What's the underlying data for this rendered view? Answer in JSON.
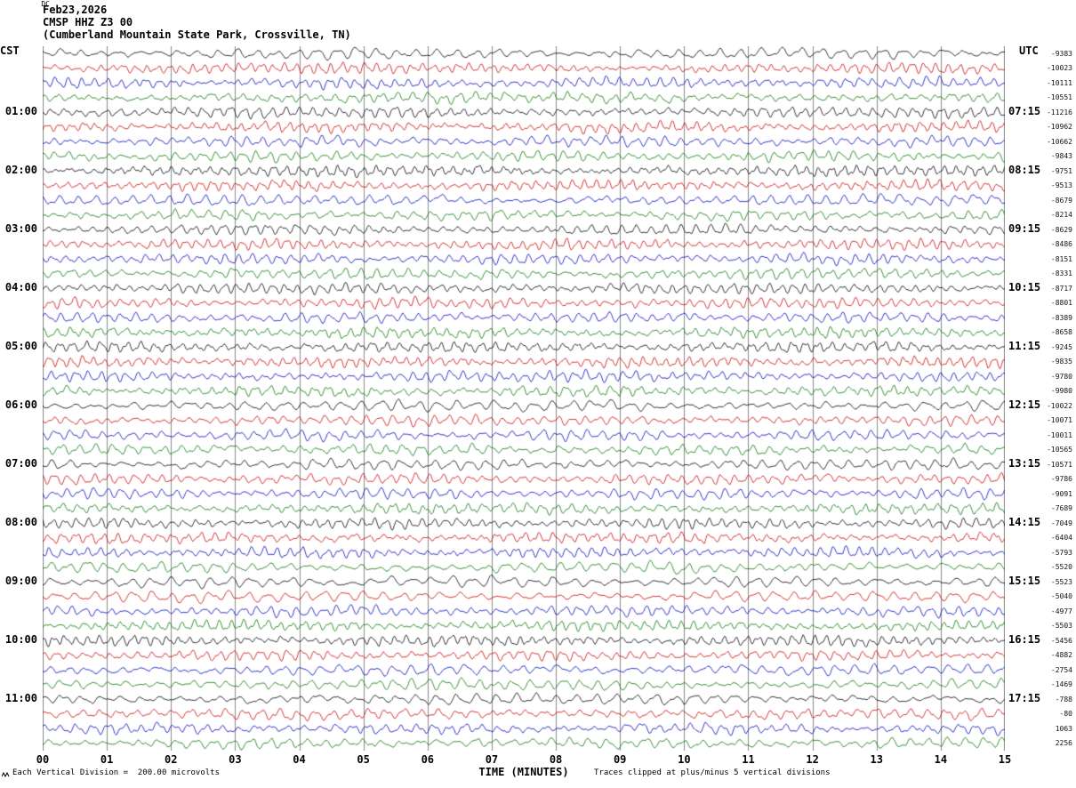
{
  "header": {
    "date": "Feb23,2026",
    "station": "CMSP HHZ Z3 00",
    "location": "(Cumberland Mountain State Park, Crossville, TN)"
  },
  "axes": {
    "left_title": "CST",
    "right_title": "UTC",
    "dc_label": "DC",
    "x_label": "TIME (MINUTES)",
    "x_ticks": [
      "00",
      "01",
      "02",
      "03",
      "04",
      "05",
      "06",
      "07",
      "08",
      "09",
      "10",
      "11",
      "12",
      "13",
      "14",
      "15"
    ]
  },
  "footer": {
    "scale_note": "Each Vertical Division =  200.00 microvolts",
    "clip_note": "Traces clipped at plus/minus 5 vertical divisions"
  },
  "chart_data": {
    "type": "line",
    "title": "CMSP HHZ Z3 00 helicorder, Feb23,2026 (Cumberland Mountain State Park, Crossville, TN)",
    "xlabel": "TIME (MINUTES)",
    "x_range": [
      0,
      15
    ],
    "minutes_per_row": 15,
    "rows_count": 48,
    "vertical_division_microvolts": 200.0,
    "clip_divisions": 5,
    "trace_colors": [
      "#000000",
      "#cc0000",
      "#0000bb",
      "#007700"
    ],
    "grid": "vertical lines at each minute",
    "rows": [
      {
        "cst": "",
        "utc": "",
        "dc": -9383
      },
      {
        "cst": "",
        "utc": "",
        "dc": -10023
      },
      {
        "cst": "",
        "utc": "",
        "dc": -10111
      },
      {
        "cst": "",
        "utc": "",
        "dc": -10551
      },
      {
        "cst": "01:00",
        "utc": "07:15",
        "dc": -11216
      },
      {
        "cst": "",
        "utc": "",
        "dc": -10962
      },
      {
        "cst": "",
        "utc": "",
        "dc": -10662
      },
      {
        "cst": "",
        "utc": "",
        "dc": -9843
      },
      {
        "cst": "02:00",
        "utc": "08:15",
        "dc": -9751
      },
      {
        "cst": "",
        "utc": "",
        "dc": -9513
      },
      {
        "cst": "",
        "utc": "",
        "dc": -8679
      },
      {
        "cst": "",
        "utc": "",
        "dc": -8214
      },
      {
        "cst": "03:00",
        "utc": "09:15",
        "dc": -8629
      },
      {
        "cst": "",
        "utc": "",
        "dc": -8486
      },
      {
        "cst": "",
        "utc": "",
        "dc": -8151
      },
      {
        "cst": "",
        "utc": "",
        "dc": -8331
      },
      {
        "cst": "04:00",
        "utc": "10:15",
        "dc": -8717
      },
      {
        "cst": "",
        "utc": "",
        "dc": -8801
      },
      {
        "cst": "",
        "utc": "",
        "dc": -8389
      },
      {
        "cst": "",
        "utc": "",
        "dc": -8658
      },
      {
        "cst": "05:00",
        "utc": "11:15",
        "dc": -9245
      },
      {
        "cst": "",
        "utc": "",
        "dc": -9835
      },
      {
        "cst": "",
        "utc": "",
        "dc": -9780
      },
      {
        "cst": "",
        "utc": "",
        "dc": -9980
      },
      {
        "cst": "06:00",
        "utc": "12:15",
        "dc": -10022
      },
      {
        "cst": "",
        "utc": "",
        "dc": -10071
      },
      {
        "cst": "",
        "utc": "",
        "dc": -10011
      },
      {
        "cst": "",
        "utc": "",
        "dc": -10565
      },
      {
        "cst": "07:00",
        "utc": "13:15",
        "dc": -10571
      },
      {
        "cst": "",
        "utc": "",
        "dc": -9786
      },
      {
        "cst": "",
        "utc": "",
        "dc": -9091
      },
      {
        "cst": "",
        "utc": "",
        "dc": -7689
      },
      {
        "cst": "08:00",
        "utc": "14:15",
        "dc": -7049
      },
      {
        "cst": "",
        "utc": "",
        "dc": -6404
      },
      {
        "cst": "",
        "utc": "",
        "dc": -5793
      },
      {
        "cst": "",
        "utc": "",
        "dc": -5520
      },
      {
        "cst": "09:00",
        "utc": "15:15",
        "dc": -5523
      },
      {
        "cst": "",
        "utc": "",
        "dc": -5040
      },
      {
        "cst": "",
        "utc": "",
        "dc": -4977
      },
      {
        "cst": "",
        "utc": "",
        "dc": -5503
      },
      {
        "cst": "10:00",
        "utc": "16:15",
        "dc": -5456
      },
      {
        "cst": "",
        "utc": "",
        "dc": -4882
      },
      {
        "cst": "",
        "utc": "",
        "dc": -2754
      },
      {
        "cst": "",
        "utc": "",
        "dc": -1469
      },
      {
        "cst": "11:00",
        "utc": "17:15",
        "dc": -788
      },
      {
        "cst": "",
        "utc": "",
        "dc": -80
      },
      {
        "cst": "",
        "utc": "",
        "dc": 1063
      },
      {
        "cst": "",
        "utc": "",
        "dc": 2256
      }
    ]
  }
}
